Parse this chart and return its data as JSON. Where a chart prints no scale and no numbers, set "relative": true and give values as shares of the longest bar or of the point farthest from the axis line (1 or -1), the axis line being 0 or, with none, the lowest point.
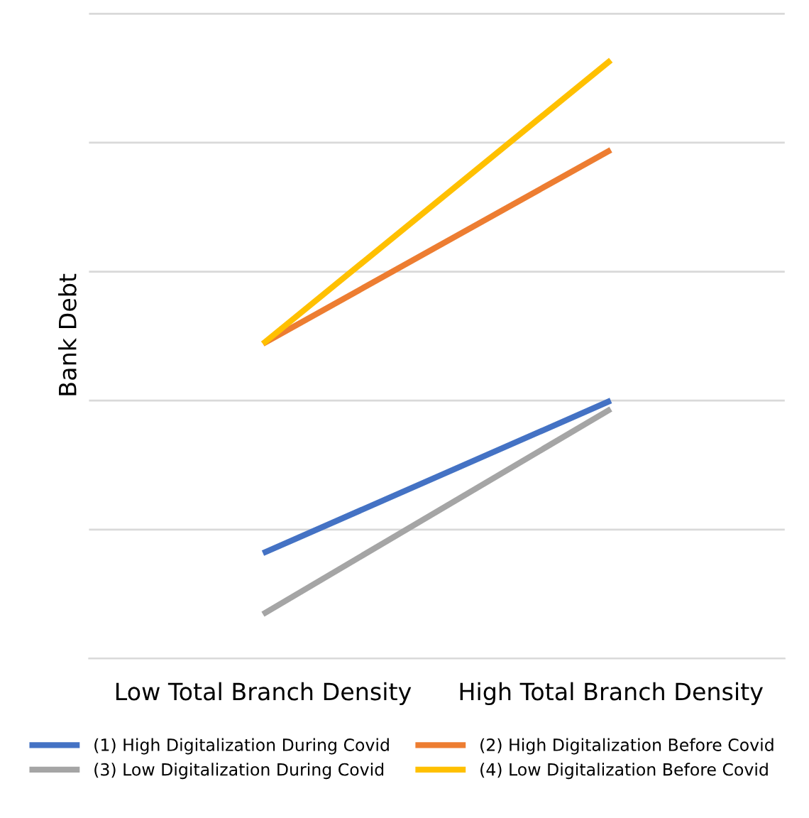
{
  "chart_data": {
    "type": "line",
    "relative": true,
    "ylabel": "Bank Debt",
    "categories": [
      "Low Total Branch Density",
      "High Total Branch Density"
    ],
    "grid": "y",
    "legend": "bottom",
    "marker": "none",
    "line_style": "solid",
    "series": [
      {
        "name": "(1) High Digitalization During Covid",
        "color": "#4472c4",
        "values": [
          0.176,
          0.431
        ]
      },
      {
        "name": "(2) High Digitalization Before Covid",
        "color": "#ed7d31",
        "values": [
          0.526,
          0.85
        ]
      },
      {
        "name": "(3) Low Digitalization During Covid",
        "color": "#a5a5a5",
        "values": [
          0.074,
          0.417
        ]
      },
      {
        "name": "(4) Low Digitalization Before Covid",
        "color": "#ffc000",
        "values": [
          0.526,
          1
        ]
      }
    ]
  }
}
